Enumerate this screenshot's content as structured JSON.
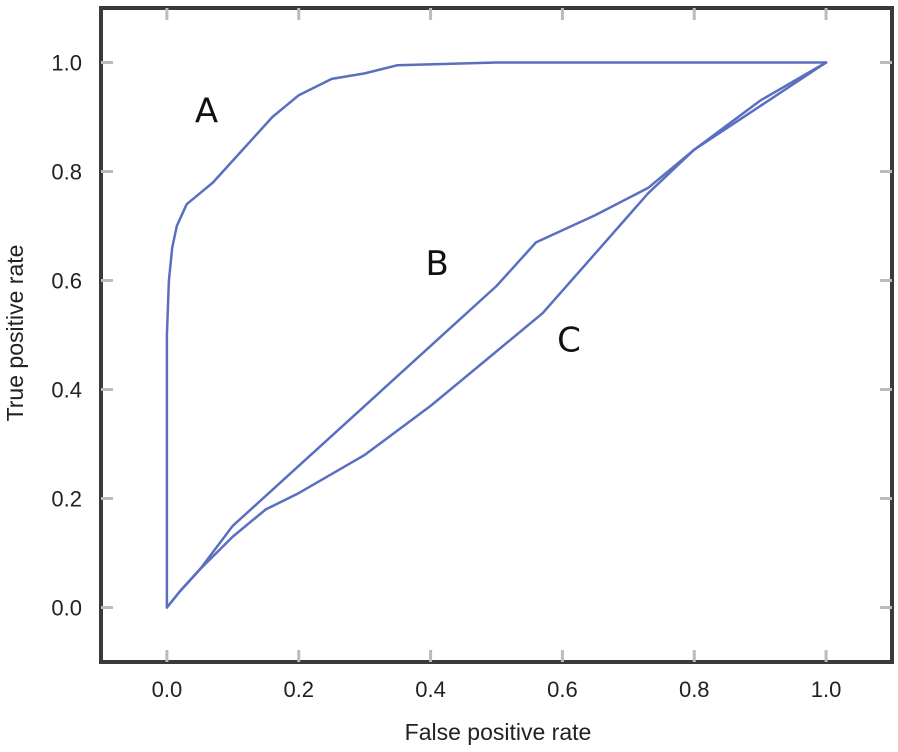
{
  "chart_data": {
    "type": "line",
    "title": "",
    "xlabel": "False positive rate",
    "ylabel": "True positive rate",
    "xlim": [
      -0.1,
      1.1
    ],
    "ylim": [
      -0.1,
      1.1
    ],
    "xticks": [
      "0.0",
      "0.2",
      "0.4",
      "0.6",
      "0.8",
      "1.0"
    ],
    "yticks": [
      "0.0",
      "0.2",
      "0.4",
      "0.6",
      "0.8",
      "1.0"
    ],
    "grid": false,
    "line_color": "#5a6fc0",
    "series": [
      {
        "name": "A",
        "x": [
          0.0,
          0.0,
          0.003,
          0.008,
          0.015,
          0.03,
          0.05,
          0.07,
          0.1,
          0.13,
          0.16,
          0.2,
          0.25,
          0.3,
          0.35,
          0.5,
          1.0
        ],
        "y": [
          0.0,
          0.5,
          0.6,
          0.66,
          0.7,
          0.74,
          0.76,
          0.78,
          0.82,
          0.86,
          0.9,
          0.94,
          0.97,
          0.98,
          0.995,
          1.0,
          1.0
        ],
        "label_at": [
          0.06,
          0.89
        ]
      },
      {
        "name": "B",
        "x": [
          0.0,
          0.02,
          0.05,
          0.1,
          0.2,
          0.3,
          0.4,
          0.5,
          0.56,
          0.65,
          0.73,
          0.8,
          0.9,
          1.0
        ],
        "y": [
          0.0,
          0.03,
          0.07,
          0.15,
          0.26,
          0.37,
          0.48,
          0.59,
          0.67,
          0.72,
          0.77,
          0.84,
          0.93,
          1.0
        ],
        "label_at": [
          0.41,
          0.61
        ]
      },
      {
        "name": "C",
        "x": [
          0.0,
          0.02,
          0.05,
          0.1,
          0.15,
          0.2,
          0.3,
          0.4,
          0.5,
          0.57,
          0.65,
          0.73,
          0.8,
          0.9,
          1.0
        ],
        "y": [
          0.0,
          0.03,
          0.07,
          0.13,
          0.18,
          0.21,
          0.28,
          0.37,
          0.47,
          0.54,
          0.65,
          0.76,
          0.84,
          0.92,
          1.0
        ],
        "label_at": [
          0.61,
          0.47
        ]
      }
    ]
  }
}
